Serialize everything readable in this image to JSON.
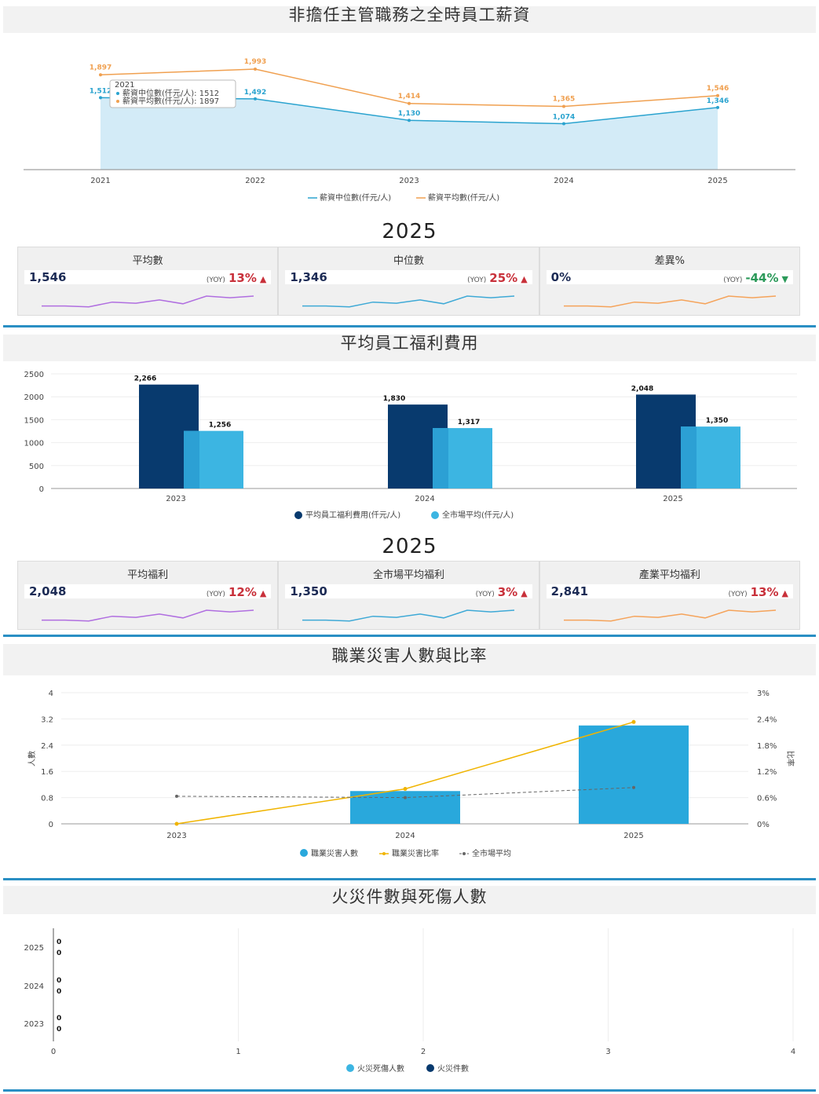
{
  "sections": {
    "salary_title": "非擔任主管職務之全時員工薪資",
    "benefit_title": "平均員工福利費用",
    "injury_title": "職業災害人數與比率",
    "fire_title": "火災件數與死傷人數"
  },
  "salary_year": "2025",
  "benefit_year": "2025",
  "tooltip": {
    "year": "2021",
    "line1": "薪資中位數(仟元/人): 1512",
    "line2": "薪資平均數(仟元/人): 1897"
  },
  "salary_kpis": [
    {
      "title": "平均數",
      "value": "1,546",
      "yoy": "(YOY)",
      "pct": "13%",
      "arrow": "▲",
      "dir": "up"
    },
    {
      "title": "中位數",
      "value": "1,346",
      "yoy": "(YOY)",
      "pct": "25%",
      "arrow": "▲",
      "dir": "up"
    },
    {
      "title": "差異%",
      "value": "0%",
      "yoy": "(YOY)",
      "pct": "-44%",
      "arrow": "▼",
      "dir": "down"
    }
  ],
  "benefit_kpis": [
    {
      "title": "平均福利",
      "value": "2,048",
      "yoy": "(YOY)",
      "pct": "12%",
      "arrow": "▲",
      "dir": "up"
    },
    {
      "title": "全市場平均福利",
      "value": "1,350",
      "yoy": "(YOY)",
      "pct": "3%",
      "arrow": "▲",
      "dir": "up"
    },
    {
      "title": "產業平均福利",
      "value": "2,841",
      "yoy": "(YOY)",
      "pct": "13%",
      "arrow": "▲",
      "dir": "up"
    }
  ],
  "colors": {
    "median": "#2aa3cf",
    "mean": "#f0a050",
    "area": "#d3ebf7",
    "navy": "#083a6e",
    "sky": "#3cb5e2",
    "bar_blue": "#29a8dc",
    "gold": "#f0b400",
    "gray_dash": "#666666",
    "spark_purple": "#b06ee0",
    "spark_blue": "#3ea9d6",
    "spark_orange": "#f5a35a"
  },
  "chart_data": [
    {
      "type": "area",
      "title": "非擔任主管職務之全時員工薪資",
      "categories": [
        "2021",
        "2022",
        "2023",
        "2024",
        "2025"
      ],
      "series": [
        {
          "name": "薪資中位數(仟元/人)",
          "values": [
            1512,
            1492,
            1130,
            1074,
            1346
          ]
        },
        {
          "name": "薪資平均數(仟元/人)",
          "values": [
            1897,
            1993,
            1414,
            1365,
            1546
          ]
        }
      ],
      "value_labels": {
        "median": [
          "1,512",
          "1,492",
          "1,130",
          "1,074",
          "1,346"
        ],
        "mean": [
          "1,897",
          "1,993",
          "1,414",
          "1,365",
          "1,546"
        ]
      },
      "legend": "bottom"
    },
    {
      "type": "bar",
      "title": "平均員工福利費用",
      "categories": [
        "2023",
        "2024",
        "2025"
      ],
      "series": [
        {
          "name": "平均員工福利費用(仟元/人)",
          "values": [
            2266,
            1830,
            2048
          ]
        },
        {
          "name": "全市場平均(仟元/人)",
          "values": [
            1256,
            1317,
            1350
          ]
        }
      ],
      "value_labels": [
        [
          "2,266",
          "1,830",
          "2,048"
        ],
        [
          "1,256",
          "1,317",
          "1,350"
        ]
      ],
      "ylim": [
        0,
        2500
      ],
      "yticks": [
        "2500",
        "2000",
        "1500",
        "1000",
        "500",
        "0"
      ],
      "legend": "bottom"
    },
    {
      "type": "bar",
      "title": "職業災害人數與比率",
      "categories": [
        "2023",
        "2024",
        "2025"
      ],
      "ylabel": "人數",
      "y2label": "比率",
      "ylim": [
        0,
        4
      ],
      "y2lim": [
        0,
        0.03
      ],
      "yticks": [
        "4",
        "3.2",
        "2.4",
        "1.6",
        "0.8",
        "0"
      ],
      "y2ticks": [
        "3%",
        "2.4%",
        "1.8%",
        "1.2%",
        "0.6%",
        "0%"
      ],
      "series": [
        {
          "name": "職業災害人數",
          "type": "bar",
          "values": [
            0,
            1,
            3
          ]
        },
        {
          "name": "職業災害比率",
          "type": "line",
          "values": [
            0,
            0.008,
            0.0233
          ]
        },
        {
          "name": "全市場平均",
          "type": "line",
          "values": [
            0.0063,
            0.006,
            0.0083
          ]
        }
      ],
      "legend": "bottom"
    },
    {
      "type": "bar",
      "orientation": "horizontal",
      "title": "火災件數與死傷人數",
      "categories": [
        "2025",
        "2024",
        "2023"
      ],
      "xlim": [
        0,
        4
      ],
      "xticks": [
        "0",
        "1",
        "2",
        "3",
        "4"
      ],
      "series": [
        {
          "name": "火災死傷人數",
          "values": [
            0,
            0,
            0
          ]
        },
        {
          "name": "火災件數",
          "values": [
            0,
            0,
            0
          ]
        }
      ],
      "value_labels": [
        "0",
        "0",
        "0",
        "0",
        "0",
        "0"
      ],
      "legend": "bottom"
    }
  ]
}
